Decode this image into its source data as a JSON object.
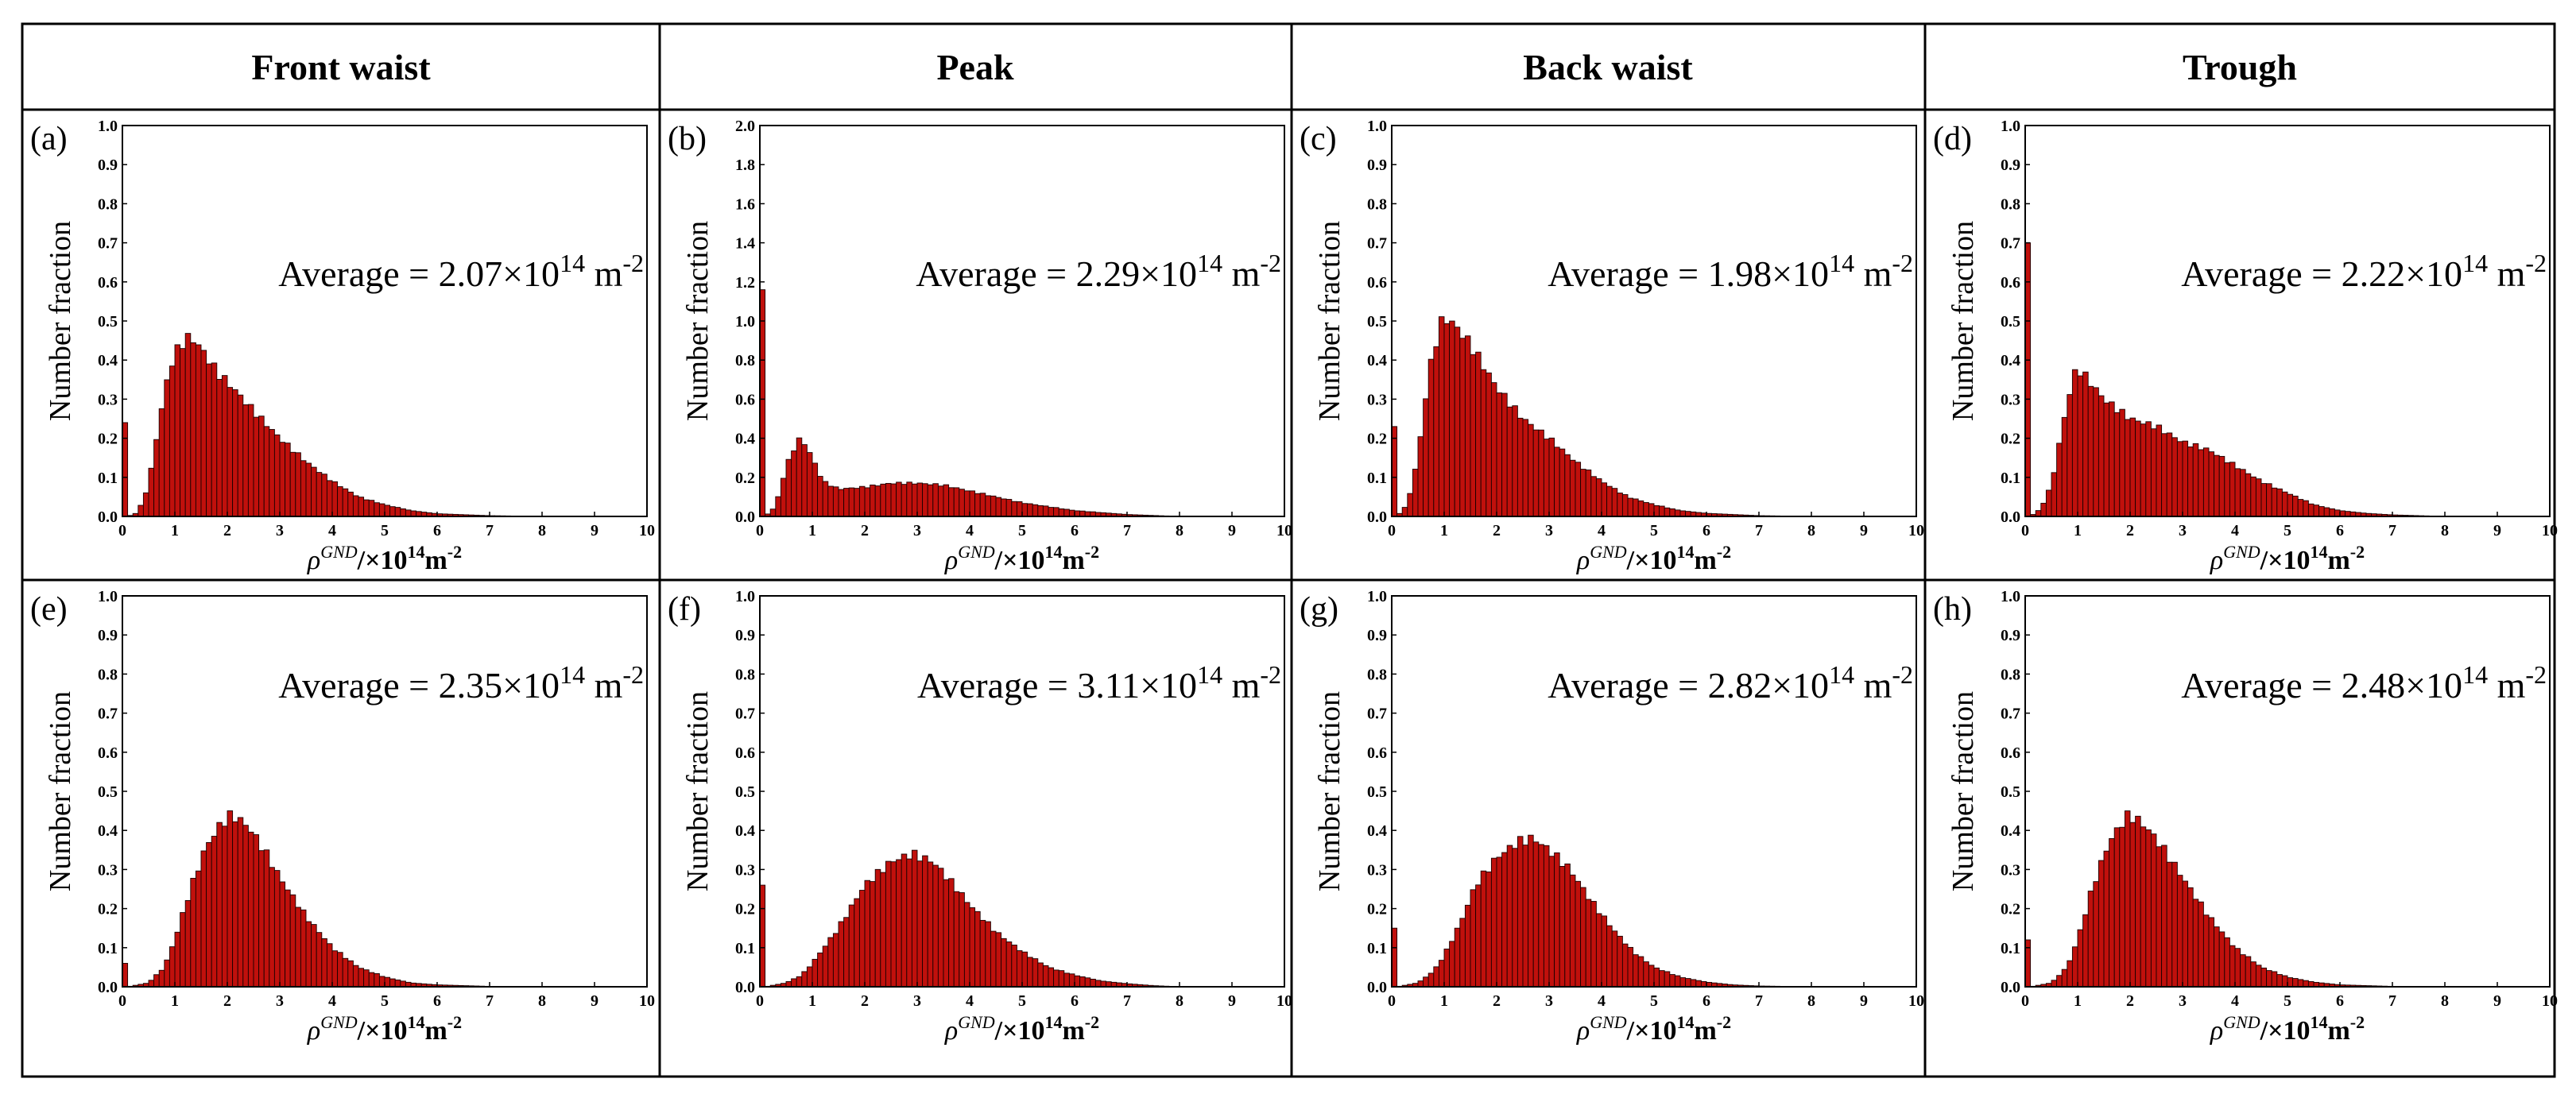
{
  "headers": [
    "Front waist",
    "Peak",
    "Back waist",
    "Trough"
  ],
  "colors": {
    "bar_fill": "#c0100c",
    "bar_edge": "#1a0000",
    "border": "#000000"
  },
  "chart_data": [
    {
      "type": "bar",
      "panel": "(a)",
      "row": 0,
      "col": 0,
      "ylabel": "Number fraction",
      "xlabel_symbol": "ρ",
      "xlabel_sup": "GND",
      "xlabel_unit": "/×10",
      "xlabel_unit_sup": "14",
      "xlabel_unit_end": "m",
      "xlabel_unit_end_sup": "-2",
      "xlim": [
        0,
        10
      ],
      "ylim": [
        0,
        1.0
      ],
      "yticks": [
        "0.0",
        "0.1",
        "0.2",
        "0.3",
        "0.4",
        "0.5",
        "0.6",
        "0.7",
        "0.8",
        "0.9",
        "1.0"
      ],
      "xticks": [
        "0",
        "1",
        "2",
        "3",
        "4",
        "5",
        "6",
        "7",
        "8",
        "9",
        "10"
      ],
      "bin_width": 0.1,
      "zero_bin": 0.24,
      "profile": [
        [
          0.1,
          0
        ],
        [
          0.3,
          0.01
        ],
        [
          0.5,
          0.08
        ],
        [
          0.7,
          0.24
        ],
        [
          0.9,
          0.38
        ],
        [
          1.1,
          0.44
        ],
        [
          1.3,
          0.46
        ],
        [
          1.5,
          0.43
        ],
        [
          1.8,
          0.37
        ],
        [
          2.1,
          0.33
        ],
        [
          2.5,
          0.27
        ],
        [
          3.0,
          0.2
        ],
        [
          3.5,
          0.14
        ],
        [
          4.0,
          0.09
        ],
        [
          4.5,
          0.05
        ],
        [
          5.0,
          0.03
        ],
        [
          5.5,
          0.015
        ],
        [
          6.0,
          0.007
        ],
        [
          7.0,
          0.002
        ],
        [
          8.0,
          0
        ]
      ],
      "annotation": {
        "prefix": "Average = 2.07×10",
        "exp": "14",
        "unit": " m",
        "unit_exp": "-2"
      }
    },
    {
      "type": "bar",
      "panel": "(b)",
      "row": 0,
      "col": 1,
      "ylabel": "Number fraction",
      "xlabel_symbol": "ρ",
      "xlabel_sup": "GND",
      "xlabel_unit": "/×10",
      "xlabel_unit_sup": "14",
      "xlabel_unit_end": "m",
      "xlabel_unit_end_sup": "-2",
      "xlim": [
        0,
        10
      ],
      "ylim": [
        0,
        2.0
      ],
      "yticks": [
        "0.0",
        "0.2",
        "0.4",
        "0.6",
        "0.8",
        "1.0",
        "1.2",
        "1.4",
        "1.6",
        "1.8",
        "2.0"
      ],
      "xticks": [
        "0",
        "1",
        "2",
        "3",
        "4",
        "5",
        "6",
        "7",
        "8",
        "9",
        "10"
      ],
      "bin_width": 0.1,
      "zero_bin": 1.16,
      "profile": [
        [
          0.1,
          0
        ],
        [
          0.3,
          0.05
        ],
        [
          0.5,
          0.25
        ],
        [
          0.7,
          0.38
        ],
        [
          0.8,
          0.4
        ],
        [
          1.0,
          0.3
        ],
        [
          1.2,
          0.18
        ],
        [
          1.5,
          0.14
        ],
        [
          2.0,
          0.15
        ],
        [
          2.5,
          0.17
        ],
        [
          3.0,
          0.17
        ],
        [
          3.5,
          0.16
        ],
        [
          4.0,
          0.13
        ],
        [
          4.5,
          0.1
        ],
        [
          5.0,
          0.07
        ],
        [
          5.5,
          0.05
        ],
        [
          6.0,
          0.03
        ],
        [
          6.5,
          0.02
        ],
        [
          7.0,
          0.01
        ],
        [
          7.5,
          0.005
        ],
        [
          8.0,
          0
        ]
      ],
      "annotation": {
        "prefix": "Average = 2.29×10",
        "exp": "14",
        "unit": " m",
        "unit_exp": "-2"
      }
    },
    {
      "type": "bar",
      "panel": "(c)",
      "row": 0,
      "col": 2,
      "ylabel": "Number fraction",
      "xlabel_symbol": "ρ",
      "xlabel_sup": "GND",
      "xlabel_unit": "/×10",
      "xlabel_unit_sup": "14",
      "xlabel_unit_end": "m",
      "xlabel_unit_end_sup": "-2",
      "xlim": [
        0,
        10
      ],
      "ylim": [
        0,
        1.0
      ],
      "yticks": [
        "0.0",
        "0.1",
        "0.2",
        "0.3",
        "0.4",
        "0.5",
        "0.6",
        "0.7",
        "0.8",
        "0.9",
        "1.0"
      ],
      "xticks": [
        "0",
        "1",
        "2",
        "3",
        "4",
        "5",
        "6",
        "7",
        "8",
        "9",
        "10"
      ],
      "bin_width": 0.1,
      "zero_bin": 0.23,
      "profile": [
        [
          0.1,
          0
        ],
        [
          0.3,
          0.03
        ],
        [
          0.5,
          0.15
        ],
        [
          0.7,
          0.36
        ],
        [
          0.9,
          0.48
        ],
        [
          1.0,
          0.51
        ],
        [
          1.2,
          0.49
        ],
        [
          1.5,
          0.44
        ],
        [
          2.0,
          0.33
        ],
        [
          2.5,
          0.25
        ],
        [
          3.0,
          0.2
        ],
        [
          3.5,
          0.14
        ],
        [
          4.0,
          0.09
        ],
        [
          4.5,
          0.05
        ],
        [
          5.0,
          0.03
        ],
        [
          5.5,
          0.015
        ],
        [
          6.0,
          0.008
        ],
        [
          7.0,
          0.002
        ],
        [
          8.0,
          0
        ]
      ],
      "annotation": {
        "prefix": "Average = 1.98×10",
        "exp": "14",
        "unit": " m",
        "unit_exp": "-2"
      }
    },
    {
      "type": "bar",
      "panel": "(d)",
      "row": 0,
      "col": 3,
      "ylabel": "Number fraction",
      "xlabel_symbol": "ρ",
      "xlabel_sup": "GND",
      "xlabel_unit": "/×10",
      "xlabel_unit_sup": "14",
      "xlabel_unit_end": "m",
      "xlabel_unit_end_sup": "-2",
      "xlim": [
        0,
        10
      ],
      "ylim": [
        0,
        1.0
      ],
      "yticks": [
        "0.0",
        "0.1",
        "0.2",
        "0.3",
        "0.4",
        "0.5",
        "0.6",
        "0.7",
        "0.8",
        "0.9",
        "1.0"
      ],
      "xticks": [
        "0",
        "1",
        "2",
        "3",
        "4",
        "5",
        "6",
        "7",
        "8",
        "9",
        "10"
      ],
      "bin_width": 0.1,
      "zero_bin": 0.7,
      "profile": [
        [
          0.1,
          0
        ],
        [
          0.3,
          0.02
        ],
        [
          0.5,
          0.08
        ],
        [
          0.7,
          0.22
        ],
        [
          0.9,
          0.35
        ],
        [
          1.0,
          0.38
        ],
        [
          1.2,
          0.35
        ],
        [
          1.5,
          0.3
        ],
        [
          2.0,
          0.25
        ],
        [
          2.5,
          0.23
        ],
        [
          3.0,
          0.19
        ],
        [
          3.5,
          0.17
        ],
        [
          4.0,
          0.13
        ],
        [
          4.5,
          0.09
        ],
        [
          5.0,
          0.06
        ],
        [
          5.5,
          0.03
        ],
        [
          6.0,
          0.015
        ],
        [
          6.5,
          0.008
        ],
        [
          7.0,
          0.004
        ],
        [
          8.0,
          0
        ]
      ],
      "annotation": {
        "prefix": "Average = 2.22×10",
        "exp": "14",
        "unit": " m",
        "unit_exp": "-2"
      }
    },
    {
      "type": "bar",
      "panel": "(e)",
      "row": 1,
      "col": 0,
      "ylabel": "Number fraction",
      "xlabel_symbol": "ρ",
      "xlabel_sup": "GND",
      "xlabel_unit": "/×10",
      "xlabel_unit_sup": "14",
      "xlabel_unit_end": "m",
      "xlabel_unit_end_sup": "-2",
      "xlim": [
        0,
        10
      ],
      "ylim": [
        0,
        1.0
      ],
      "yticks": [
        "0.0",
        "0.1",
        "0.2",
        "0.3",
        "0.4",
        "0.5",
        "0.6",
        "0.7",
        "0.8",
        "0.9",
        "1.0"
      ],
      "xticks": [
        "0",
        "1",
        "2",
        "3",
        "4",
        "5",
        "6",
        "7",
        "8",
        "9",
        "10"
      ],
      "bin_width": 0.1,
      "zero_bin": 0.06,
      "profile": [
        [
          0.1,
          0
        ],
        [
          0.5,
          0.01
        ],
        [
          0.8,
          0.05
        ],
        [
          1.0,
          0.12
        ],
        [
          1.3,
          0.25
        ],
        [
          1.6,
          0.36
        ],
        [
          1.9,
          0.42
        ],
        [
          2.1,
          0.44
        ],
        [
          2.4,
          0.41
        ],
        [
          2.7,
          0.35
        ],
        [
          3.0,
          0.28
        ],
        [
          3.5,
          0.18
        ],
        [
          4.0,
          0.1
        ],
        [
          4.5,
          0.05
        ],
        [
          5.0,
          0.025
        ],
        [
          5.5,
          0.01
        ],
        [
          6.0,
          0.005
        ],
        [
          7.0,
          0.001
        ],
        [
          8.0,
          0
        ]
      ],
      "annotation": {
        "prefix": "Average = 2.35×10",
        "exp": "14",
        "unit": " m",
        "unit_exp": "-2"
      }
    },
    {
      "type": "bar",
      "panel": "(f)",
      "row": 1,
      "col": 1,
      "ylabel": "Number fraction",
      "xlabel_symbol": "ρ",
      "xlabel_sup": "GND",
      "xlabel_unit": "/×10",
      "xlabel_unit_sup": "14",
      "xlabel_unit_end": "m",
      "xlabel_unit_end_sup": "-2",
      "xlim": [
        0,
        10
      ],
      "ylim": [
        0,
        1.0
      ],
      "yticks": [
        "0.0",
        "0.1",
        "0.2",
        "0.3",
        "0.4",
        "0.5",
        "0.6",
        "0.7",
        "0.8",
        "0.9",
        "1.0"
      ],
      "xticks": [
        "0",
        "1",
        "2",
        "3",
        "4",
        "5",
        "6",
        "7",
        "8",
        "9",
        "10"
      ],
      "bin_width": 0.1,
      "zero_bin": 0.26,
      "profile": [
        [
          0.1,
          0
        ],
        [
          0.5,
          0.01
        ],
        [
          0.8,
          0.03
        ],
        [
          1.0,
          0.06
        ],
        [
          1.5,
          0.15
        ],
        [
          2.0,
          0.26
        ],
        [
          2.5,
          0.32
        ],
        [
          2.9,
          0.34
        ],
        [
          3.3,
          0.32
        ],
        [
          3.7,
          0.26
        ],
        [
          4.0,
          0.21
        ],
        [
          4.5,
          0.14
        ],
        [
          5.0,
          0.09
        ],
        [
          5.5,
          0.05
        ],
        [
          6.0,
          0.03
        ],
        [
          6.5,
          0.015
        ],
        [
          7.0,
          0.008
        ],
        [
          7.5,
          0.003
        ],
        [
          8.0,
          0
        ]
      ],
      "annotation": {
        "prefix": "Average = 3.11×10",
        "exp": "14",
        "unit": " m",
        "unit_exp": "-2"
      }
    },
    {
      "type": "bar",
      "panel": "(g)",
      "row": 1,
      "col": 2,
      "ylabel": "Number fraction",
      "xlabel_symbol": "ρ",
      "xlabel_sup": "GND",
      "xlabel_unit": "/×10",
      "xlabel_unit_sup": "14",
      "xlabel_unit_end": "m",
      "xlabel_unit_end_sup": "-2",
      "xlim": [
        0,
        10
      ],
      "ylim": [
        0,
        1.0
      ],
      "yticks": [
        "0.0",
        "0.1",
        "0.2",
        "0.3",
        "0.4",
        "0.5",
        "0.6",
        "0.7",
        "0.8",
        "0.9",
        "1.0"
      ],
      "xticks": [
        "0",
        "1",
        "2",
        "3",
        "4",
        "5",
        "6",
        "7",
        "8",
        "9",
        "10"
      ],
      "bin_width": 0.1,
      "zero_bin": 0.15,
      "profile": [
        [
          0.1,
          0
        ],
        [
          0.5,
          0.01
        ],
        [
          0.8,
          0.04
        ],
        [
          1.0,
          0.08
        ],
        [
          1.3,
          0.16
        ],
        [
          1.6,
          0.26
        ],
        [
          2.0,
          0.33
        ],
        [
          2.4,
          0.37
        ],
        [
          2.7,
          0.38
        ],
        [
          3.0,
          0.35
        ],
        [
          3.4,
          0.3
        ],
        [
          3.8,
          0.22
        ],
        [
          4.2,
          0.15
        ],
        [
          4.6,
          0.09
        ],
        [
          5.0,
          0.05
        ],
        [
          5.5,
          0.025
        ],
        [
          6.0,
          0.012
        ],
        [
          6.5,
          0.005
        ],
        [
          7.0,
          0.002
        ],
        [
          8.0,
          0
        ]
      ],
      "annotation": {
        "prefix": "Average = 2.82×10",
        "exp": "14",
        "unit": " m",
        "unit_exp": "-2"
      }
    },
    {
      "type": "bar",
      "panel": "(h)",
      "row": 1,
      "col": 3,
      "ylabel": "Number fraction",
      "xlabel_symbol": "ρ",
      "xlabel_sup": "GND",
      "xlabel_unit": "/×10",
      "xlabel_unit_sup": "14",
      "xlabel_unit_end": "m",
      "xlabel_unit_end_sup": "-2",
      "xlim": [
        0,
        10
      ],
      "ylim": [
        0,
        1.0
      ],
      "yticks": [
        "0.0",
        "0.1",
        "0.2",
        "0.3",
        "0.4",
        "0.5",
        "0.6",
        "0.7",
        "0.8",
        "0.9",
        "1.0"
      ],
      "xticks": [
        "0",
        "1",
        "2",
        "3",
        "4",
        "5",
        "6",
        "7",
        "8",
        "9",
        "10"
      ],
      "bin_width": 0.1,
      "zero_bin": 0.12,
      "profile": [
        [
          0.1,
          0
        ],
        [
          0.5,
          0.01
        ],
        [
          0.8,
          0.05
        ],
        [
          1.0,
          0.12
        ],
        [
          1.3,
          0.26
        ],
        [
          1.6,
          0.37
        ],
        [
          1.9,
          0.43
        ],
        [
          2.0,
          0.44
        ],
        [
          2.3,
          0.41
        ],
        [
          2.6,
          0.36
        ],
        [
          3.0,
          0.28
        ],
        [
          3.5,
          0.18
        ],
        [
          4.0,
          0.1
        ],
        [
          4.5,
          0.05
        ],
        [
          5.0,
          0.025
        ],
        [
          5.5,
          0.012
        ],
        [
          6.0,
          0.005
        ],
        [
          7.0,
          0.001
        ],
        [
          8.0,
          0
        ]
      ],
      "annotation": {
        "prefix": "Average = 2.48×10",
        "exp": "14",
        "unit": " m",
        "unit_exp": "-2"
      }
    }
  ]
}
